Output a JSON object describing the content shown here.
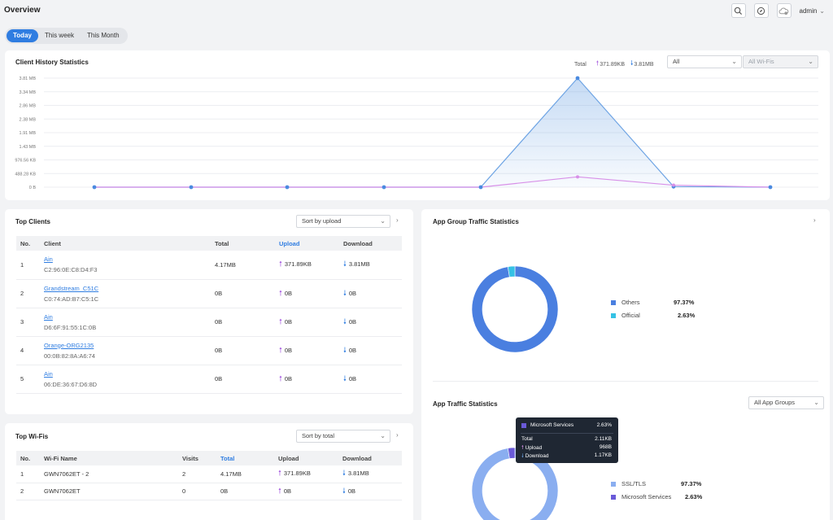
{
  "page": {
    "title": "Overview",
    "user": "admin"
  },
  "tabs": [
    {
      "label": "Today"
    },
    {
      "label": "This week"
    },
    {
      "label": "This Month"
    }
  ],
  "client_history": {
    "title": "Client History Statistics",
    "total_label": "Total",
    "upload": "371.89KB",
    "download": "3.81MB",
    "filter_client": "All",
    "filter_wifi": "All Wi-Fis",
    "colors": {
      "download": "#6ea4e4",
      "upload": "#d890e8"
    }
  },
  "chart_data": {
    "type": "area",
    "y_ticks": [
      "3.81 MB",
      "3.34 MB",
      "2.86 MB",
      "2.38 MB",
      "1.91 MB",
      "1.43 MB",
      "976.56 KB",
      "488.28 KB",
      "0 B"
    ],
    "series": [
      {
        "values": [
          0,
          0,
          0,
          0,
          0,
          3.81,
          0.02,
          0
        ]
      },
      {
        "values": [
          0,
          0,
          0,
          0,
          0,
          0.36,
          0.07,
          0
        ]
      }
    ],
    "ylim": [
      0,
      3.81
    ],
    "grid": true
  },
  "top_clients": {
    "title": "Top Clients",
    "sort": "Sort by upload",
    "columns": [
      "No.",
      "Client",
      "Total",
      "Upload",
      "Download"
    ],
    "rows": [
      {
        "no": "1",
        "name": "Ain",
        "mac": "C2:96:0E:C8:D4:F3",
        "total": "4.17MB",
        "upload": "371.89KB",
        "download": "3.81MB"
      },
      {
        "no": "2",
        "name": "Grandstream_C51C",
        "mac": "C0:74:AD:B7:C5:1C",
        "total": "0B",
        "upload": "0B",
        "download": "0B"
      },
      {
        "no": "3",
        "name": "Ain",
        "mac": "D6:6F:91:55:1C:0B",
        "total": "0B",
        "upload": "0B",
        "download": "0B"
      },
      {
        "no": "4",
        "name": "Orange-ORG2135",
        "mac": "00:0B:82:8A:A6:74",
        "total": "0B",
        "upload": "0B",
        "download": "0B"
      },
      {
        "no": "5",
        "name": "Ain",
        "mac": "06:DE:36:67:D6:8D",
        "total": "0B",
        "upload": "0B",
        "download": "0B"
      }
    ]
  },
  "top_wifis": {
    "title": "Top Wi-Fis",
    "sort": "Sort by total",
    "columns": [
      "No.",
      "Wi-Fi Name",
      "Visits",
      "Total",
      "Upload",
      "Download"
    ],
    "rows": [
      {
        "no": "1",
        "name": "GWN7062ET - 2",
        "visits": "2",
        "total": "4.17MB",
        "upload": "371.89KB",
        "download": "3.81MB"
      },
      {
        "no": "2",
        "name": "GWN7062ET",
        "visits": "0",
        "total": "0B",
        "upload": "0B",
        "download": "0B"
      }
    ]
  },
  "app_group": {
    "title": "App Group Traffic Statistics",
    "legend": [
      {
        "name": "Others",
        "pct": "97.37%",
        "value": 97.37,
        "color": "#4a7fe0"
      },
      {
        "name": "Official",
        "pct": "2.63%",
        "value": 2.63,
        "color": "#35c2e5"
      }
    ]
  },
  "app_traffic": {
    "title": "App Traffic Statistics",
    "filter": "All App Groups",
    "legend": [
      {
        "name": "SSL/TLS",
        "pct": "97.37%",
        "value": 97.37,
        "color": "#8aaef0"
      },
      {
        "name": "Microsoft Services",
        "pct": "2.63%",
        "value": 2.63,
        "color": "#6a5ad8"
      }
    ],
    "tooltip": {
      "name": "Microsoft Services",
      "pct": "2.63%",
      "total_label": "Total",
      "total": "2.11KB",
      "upload_label": "Upload",
      "upload": "968B",
      "download_label": "Download",
      "download": "1.17KB"
    }
  }
}
